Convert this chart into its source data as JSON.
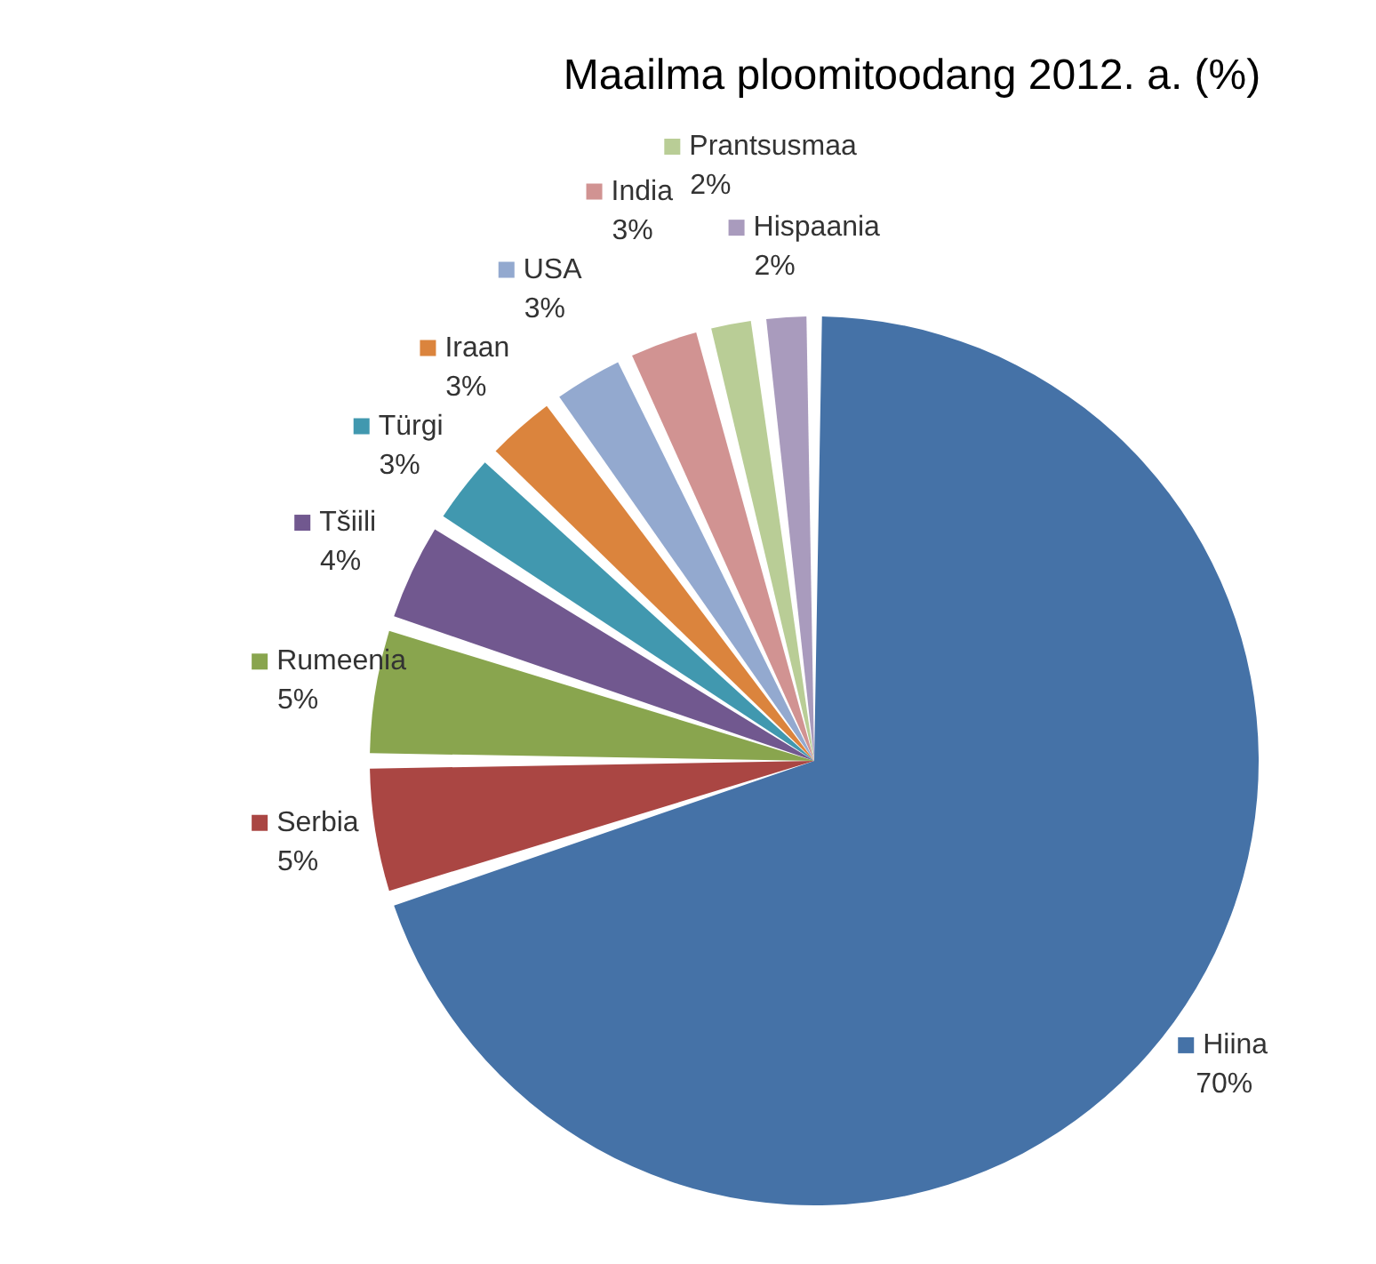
{
  "chart_data": {
    "type": "pie",
    "title": "Maailma ploomitoodang 2012. a. (%)",
    "categories": [
      "Hiina",
      "Serbia",
      "Rumeenia",
      "Tšiili",
      "Türgi",
      "Iraan",
      "USA",
      "India",
      "Prantsusmaa",
      "Hispaania"
    ],
    "values": [
      70,
      5,
      5,
      4,
      3,
      3,
      3,
      3,
      2,
      2
    ],
    "value_labels": [
      "70%",
      "5%",
      "5%",
      "4%",
      "3%",
      "3%",
      "3%",
      "3%",
      "2%",
      "2%"
    ],
    "colors": [
      "#4572a7",
      "#aa4643",
      "#89a54e",
      "#71588f",
      "#4198af",
      "#db843d",
      "#93a9cf",
      "#d19392",
      "#b9cd96",
      "#a99bbd"
    ],
    "legend": "left"
  }
}
